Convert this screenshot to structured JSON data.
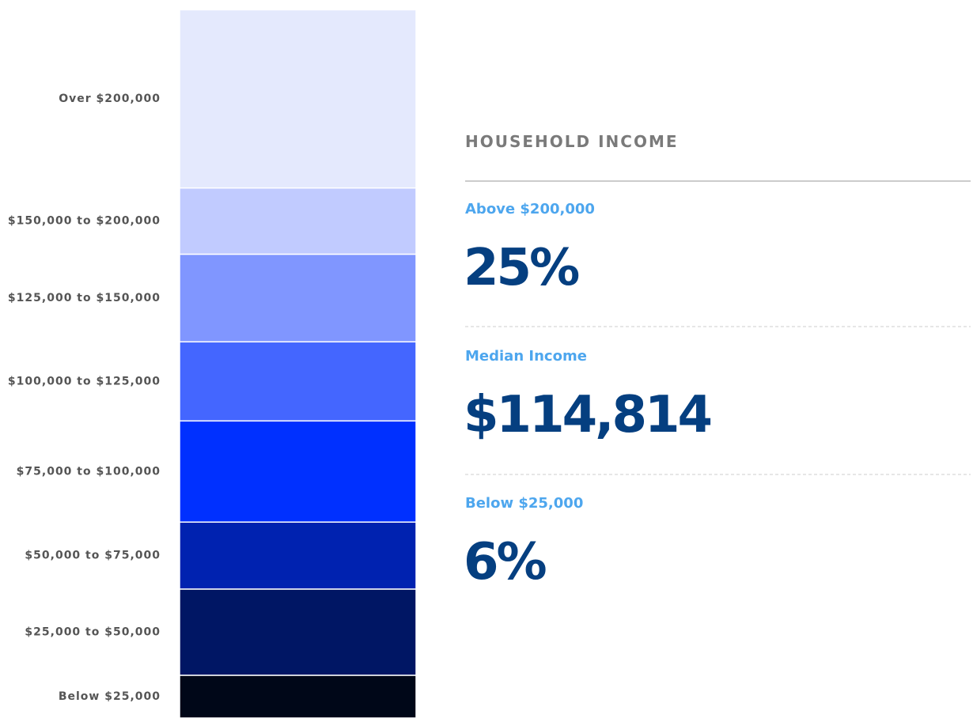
{
  "chart_data": {
    "type": "stacked-column",
    "categories": [
      "Over $200,000",
      "$150,000 to $200,000",
      "$125,000 to $150,000",
      "$100,000 to $125,000",
      "$75,000 to $100,000",
      "$50,000 to $75,000",
      "$25,000 to $50,000",
      "Below $25,000"
    ],
    "values": [
      25,
      9.3,
      12.3,
      11.1,
      14.2,
      9.4,
      12.1,
      6
    ],
    "colors": [
      "#e4e9fd",
      "#c1cbff",
      "#8096ff",
      "#4466ff",
      "#0030ff",
      "#0022b0",
      "#001664",
      "#000718"
    ],
    "ylim": [
      0,
      100
    ]
  },
  "panel": {
    "title": "HOUSEHOLD INCOME",
    "labels": [
      "Above $200,000",
      "Median Income",
      "Below $25,000"
    ],
    "values": [
      25,
      114814,
      6
    ],
    "value_labels": [
      "25%",
      "$114,814",
      "6%"
    ]
  }
}
